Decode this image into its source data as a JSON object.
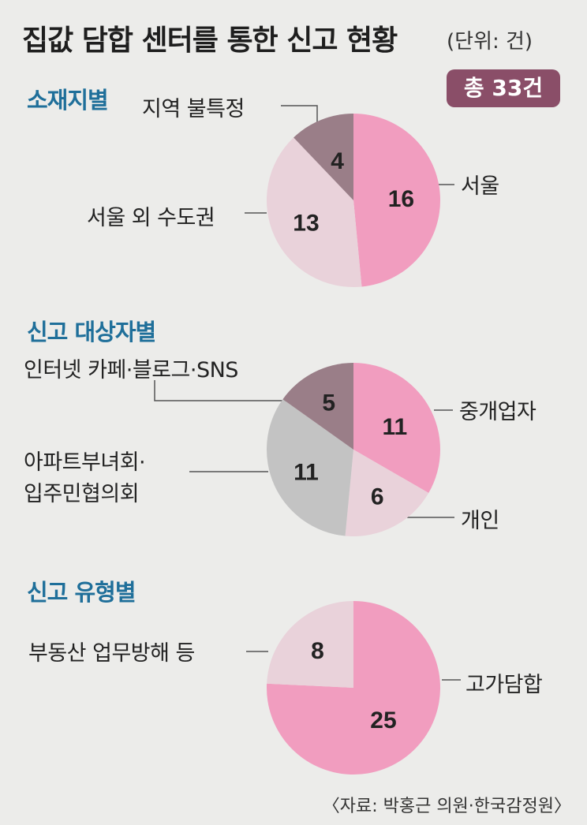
{
  "title": "집값 담합 센터를 통한 신고 현황",
  "unit": "(단위: 건)",
  "total": "총 33건",
  "source": "〈자료: 박홍근 의원·한국감정원〉",
  "colors": {
    "pink": "#f19dbf",
    "light_pink": "#e9d2da",
    "mauve": "#9a7e88",
    "gray": "#c3c3c3",
    "accent_blue": "#1f6f9a",
    "badge": "#8a4e68"
  },
  "chart_data": [
    {
      "type": "pie",
      "title": "소재지별",
      "labels": [
        "서울",
        "서울 외 수도권",
        "지역 불특정"
      ],
      "values": [
        16,
        13,
        4
      ],
      "colors": [
        "#f19dbf",
        "#e9d2da",
        "#9a7e88"
      ]
    },
    {
      "type": "pie",
      "title": "신고 대상자별",
      "labels": [
        "중개업자",
        "개인",
        "아파트부녀회·입주민협의회",
        "인터넷 카페·블로그·SNS"
      ],
      "values": [
        11,
        6,
        11,
        5
      ],
      "colors": [
        "#f19dbf",
        "#e9d2da",
        "#c3c3c3",
        "#9a7e88"
      ]
    },
    {
      "type": "pie",
      "title": "신고 유형별",
      "labels": [
        "고가담합",
        "부동산 업무방해 등"
      ],
      "values": [
        25,
        8
      ],
      "colors": [
        "#f19dbf",
        "#e9d2da"
      ]
    }
  ],
  "labels_display": {
    "c1": [
      "서울",
      "서울 외 수도권",
      "지역 불특정"
    ],
    "c2": [
      "중개업자",
      "개인",
      "아파트부녀회·",
      "입주민협의회",
      "인터넷 카페·블로그·SNS"
    ],
    "c3": [
      "고가담합",
      "부동산 업무방해 등"
    ]
  }
}
